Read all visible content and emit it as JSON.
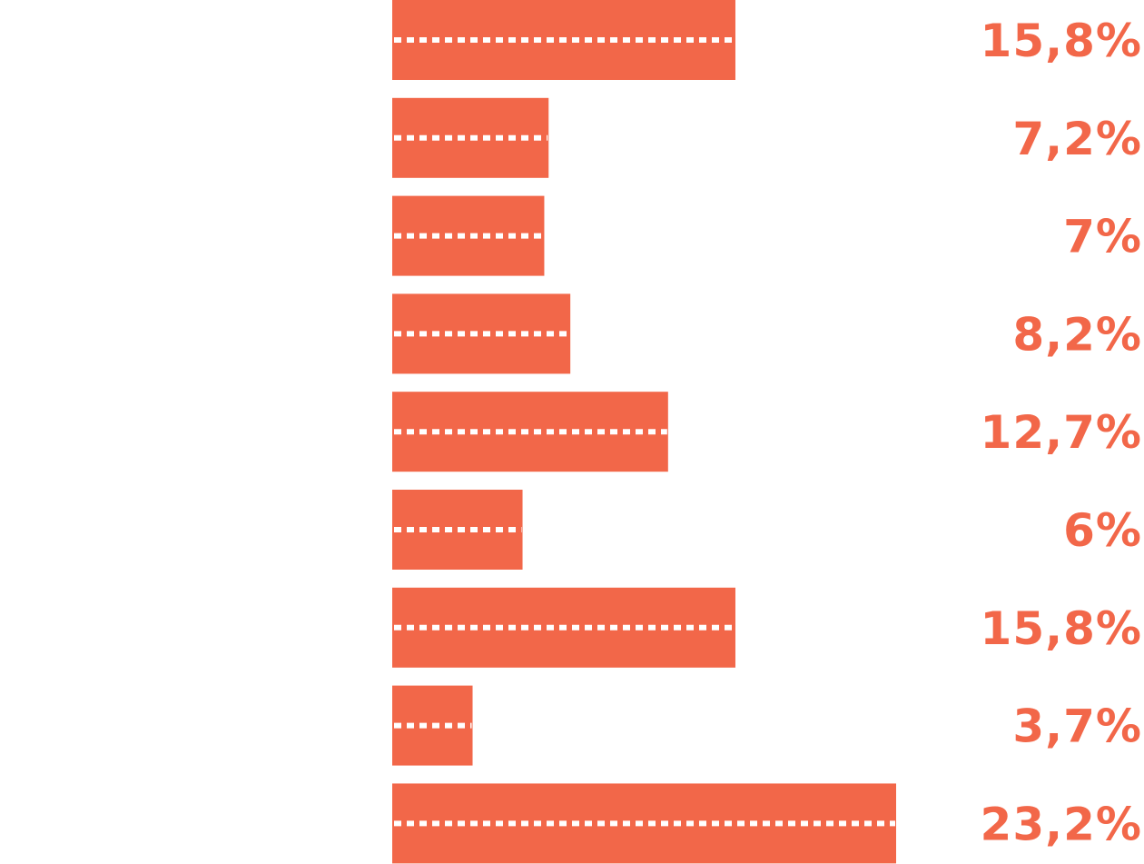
{
  "chart_data": {
    "type": "bar",
    "orientation": "horizontal",
    "series": [
      {
        "values": [
          15.8,
          7.2,
          7,
          8.2,
          12.7,
          6,
          15.8,
          3.7,
          23.2
        ]
      }
    ],
    "labels": [
      "15,8%",
      "7,2%",
      "7%",
      "8,2%",
      "12,7%",
      "6%",
      "15,8%",
      "3,7%",
      "23,2%"
    ],
    "unit": "%",
    "xlim": [
      0,
      23.2
    ],
    "grid": false,
    "legend": "none",
    "colors": {
      "bar": "#F26749",
      "label": "#F26749",
      "dots": "#FFFFFF"
    }
  }
}
